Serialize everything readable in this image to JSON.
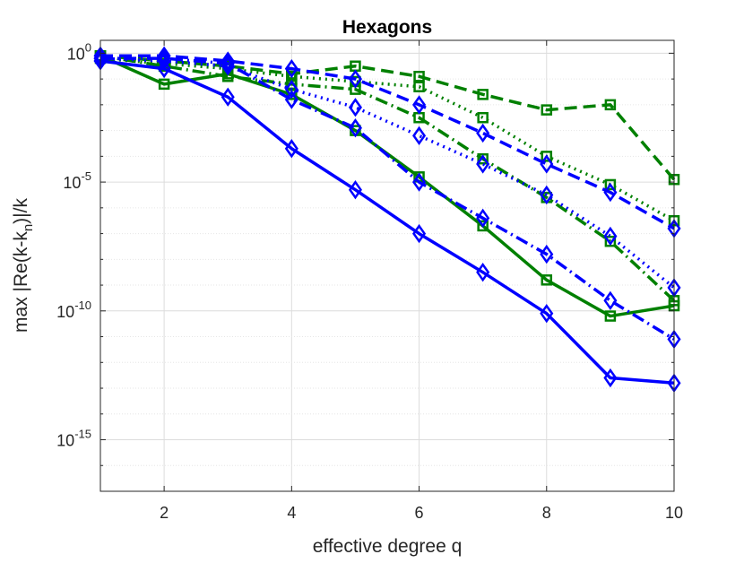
{
  "chart_data": {
    "type": "line",
    "title": "Hexagons",
    "xlabel": "effective degree q",
    "ylabel_parts": [
      "max |Re(k-k",
      "n",
      ")|/k"
    ],
    "yscale": "log",
    "xlim": [
      1,
      10
    ],
    "ylim_exponent": [
      -17,
      0.5
    ],
    "grid": true,
    "x_ticks": [
      2,
      4,
      6,
      8,
      10
    ],
    "y_ticks": [
      {
        "base": "10",
        "exp": "0",
        "value_exponent": 0
      },
      {
        "base": "10",
        "exp": "-5",
        "value_exponent": -5
      },
      {
        "base": "10",
        "exp": "-10",
        "value_exponent": -10
      },
      {
        "base": "10",
        "exp": "-15",
        "value_exponent": -15
      }
    ],
    "series": [
      {
        "name": "green-solid",
        "color": "#008000",
        "style": "solid",
        "marker": "square",
        "x": [
          1,
          2,
          3,
          4,
          5,
          6,
          7,
          8,
          9,
          10
        ],
        "y_exponent": [
          -0.1,
          -1.2,
          -0.8,
          -1.6,
          -3.0,
          -4.8,
          -6.7,
          -8.8,
          -10.2,
          -9.8
        ]
      },
      {
        "name": "green-dashdot",
        "color": "#008000",
        "style": "dashdot",
        "marker": "square",
        "x": [
          1,
          2,
          3,
          4,
          5,
          6,
          7,
          8,
          9,
          10
        ],
        "y_exponent": [
          -0.1,
          -0.5,
          -0.9,
          -1.2,
          -1.4,
          -2.5,
          -4.1,
          -5.6,
          -7.3,
          -9.6
        ]
      },
      {
        "name": "green-dotted",
        "color": "#008000",
        "style": "dotted",
        "marker": "square",
        "x": [
          1,
          2,
          3,
          4,
          5,
          6,
          7,
          8,
          9,
          10
        ],
        "y_exponent": [
          -0.2,
          -0.4,
          -0.6,
          -0.9,
          -1.1,
          -1.3,
          -2.5,
          -4.0,
          -5.1,
          -6.5
        ]
      },
      {
        "name": "green-dashed",
        "color": "#008000",
        "style": "dashed",
        "marker": "square",
        "x": [
          1,
          2,
          3,
          4,
          5,
          6,
          7,
          8,
          9,
          10
        ],
        "y_exponent": [
          -0.1,
          -0.3,
          -0.5,
          -0.8,
          -0.5,
          -0.9,
          -1.6,
          -2.2,
          -2.0,
          -4.9
        ]
      },
      {
        "name": "blue-solid",
        "color": "#0000ff",
        "style": "solid",
        "marker": "diamond",
        "x": [
          1,
          2,
          3,
          4,
          5,
          6,
          7,
          8,
          9,
          10
        ],
        "y_exponent": [
          -0.3,
          -0.6,
          -1.7,
          -3.7,
          -5.3,
          -7.0,
          -8.5,
          -10.1,
          -12.6,
          -12.8
        ]
      },
      {
        "name": "blue-dashdot",
        "color": "#0000ff",
        "style": "dashdot",
        "marker": "diamond",
        "x": [
          1,
          2,
          3,
          4,
          5,
          6,
          7,
          8,
          9,
          10
        ],
        "y_exponent": [
          -0.2,
          -0.2,
          -0.4,
          -1.8,
          -2.9,
          -5.0,
          -6.4,
          -7.8,
          -9.6,
          -11.1
        ]
      },
      {
        "name": "blue-dotted",
        "color": "#0000ff",
        "style": "dotted",
        "marker": "diamond",
        "x": [
          1,
          2,
          3,
          4,
          5,
          6,
          7,
          8,
          9,
          10
        ],
        "y_exponent": [
          -0.2,
          -0.3,
          -0.5,
          -1.4,
          -2.1,
          -3.2,
          -4.3,
          -5.5,
          -7.1,
          -9.1
        ]
      },
      {
        "name": "blue-dashed",
        "color": "#0000ff",
        "style": "dashed",
        "marker": "diamond",
        "x": [
          1,
          2,
          3,
          4,
          5,
          6,
          7,
          8,
          9,
          10
        ],
        "y_exponent": [
          -0.1,
          -0.1,
          -0.3,
          -0.6,
          -1.0,
          -2.0,
          -3.1,
          -4.3,
          -5.4,
          -6.8
        ]
      }
    ]
  }
}
